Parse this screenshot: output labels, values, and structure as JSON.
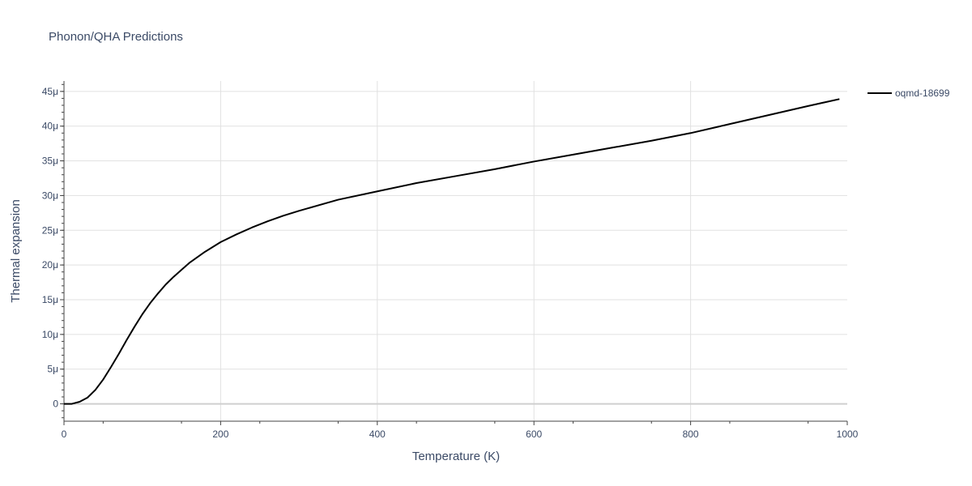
{
  "chart_data": {
    "type": "line",
    "title": "Phonon/QHA Predictions",
    "xlabel": "Temperature (K)",
    "ylabel": "Thermal expansion",
    "xlim": [
      0,
      1000
    ],
    "ylim": [
      -2.5e-06,
      4.65e-05
    ],
    "x_ticks": [
      0,
      200,
      400,
      600,
      800,
      1000
    ],
    "x_tick_labels": [
      "0",
      "200",
      "400",
      "600",
      "800",
      "1000"
    ],
    "y_ticks": [
      0,
      5e-06,
      1e-05,
      1.5e-05,
      2e-05,
      2.5e-05,
      3e-05,
      3.5e-05,
      4e-05,
      4.5e-05
    ],
    "y_tick_labels": [
      "0",
      "5μ",
      "10μ",
      "15μ",
      "20μ",
      "25μ",
      "30μ",
      "35μ",
      "40μ",
      "45μ"
    ],
    "grid": true,
    "legend_position": "top-right",
    "series": [
      {
        "name": "oqmd-18699",
        "color": "#000000",
        "x": [
          0,
          10,
          20,
          30,
          40,
          50,
          60,
          70,
          80,
          90,
          100,
          110,
          120,
          130,
          140,
          150,
          160,
          170,
          180,
          190,
          200,
          220,
          240,
          260,
          280,
          300,
          350,
          400,
          450,
          500,
          550,
          600,
          650,
          700,
          750,
          800,
          850,
          900,
          950,
          990
        ],
        "y": [
          0,
          0.0,
          3e-07,
          9e-07,
          2e-06,
          3.5e-06,
          5.3e-06,
          7.2e-06,
          9.2e-06,
          1.11e-05,
          1.29e-05,
          1.45e-05,
          1.59e-05,
          1.72e-05,
          1.83e-05,
          1.93e-05,
          2.03e-05,
          2.11e-05,
          2.19e-05,
          2.26e-05,
          2.33e-05,
          2.44e-05,
          2.54e-05,
          2.63e-05,
          2.71e-05,
          2.78e-05,
          2.94e-05,
          3.06e-05,
          3.18e-05,
          3.28e-05,
          3.38e-05,
          3.49e-05,
          3.59e-05,
          3.69e-05,
          3.79e-05,
          3.9e-05,
          4.03e-05,
          4.16e-05,
          4.29e-05,
          4.39e-05
        ]
      }
    ]
  }
}
